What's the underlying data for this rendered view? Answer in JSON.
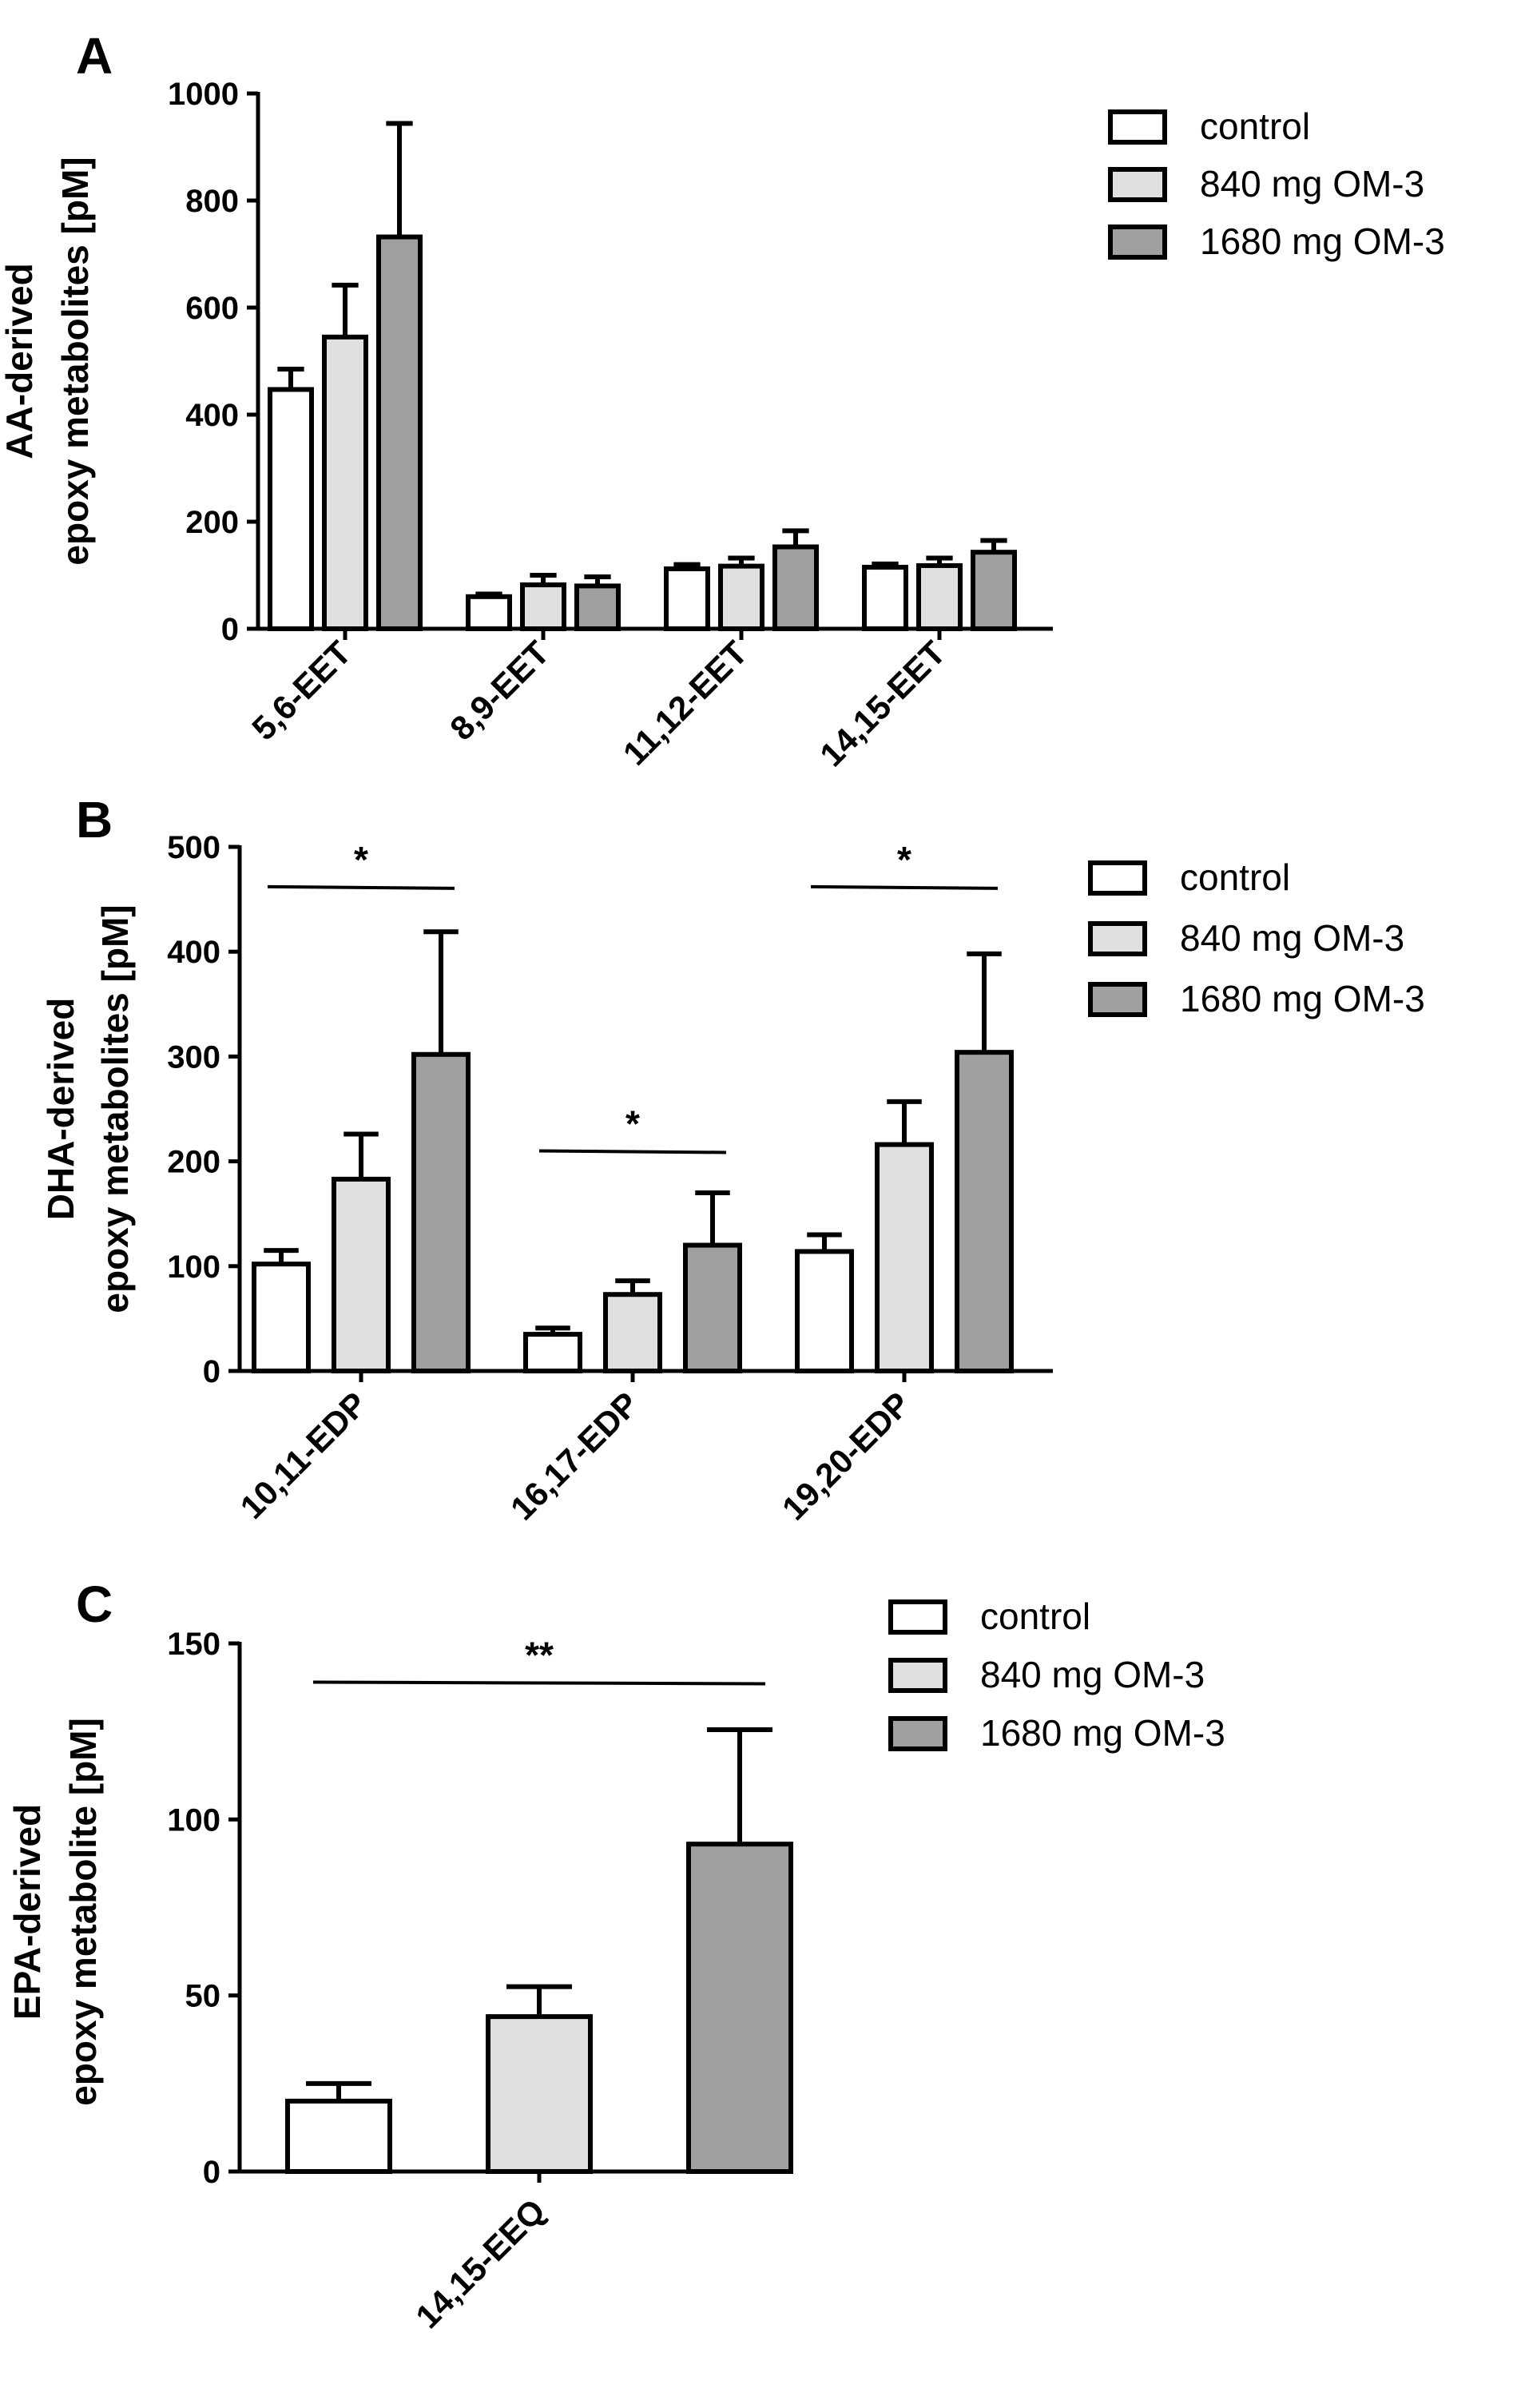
{
  "colors": {
    "control": "#ffffff",
    "840": "#e0e0e0",
    "1680": "#a0a0a0",
    "stroke": "#000000"
  },
  "legend": [
    "control",
    "840 mg OM-3",
    "1680 mg OM-3"
  ],
  "chart_data": [
    {
      "panel": "A",
      "type": "bar",
      "ylabel": [
        "AA-derived",
        "epoxy metabolites [pM]"
      ],
      "ylim": [
        0,
        1000
      ],
      "yticks": [
        0,
        200,
        400,
        600,
        800,
        1000
      ],
      "categories": [
        "5,6-EET",
        "8,9-EET",
        "11,12-EET",
        "14,15-EET"
      ],
      "series": [
        {
          "name": "control",
          "values": [
            447,
            60,
            112,
            115
          ],
          "errors": [
            38,
            5,
            8,
            6
          ]
        },
        {
          "name": "840 mg OM-3",
          "values": [
            545,
            82,
            117,
            118
          ],
          "errors": [
            97,
            18,
            15,
            14
          ]
        },
        {
          "name": "1680 mg OM-3",
          "values": [
            732,
            80,
            153,
            143
          ],
          "errors": [
            212,
            17,
            30,
            22
          ]
        }
      ],
      "significance": []
    },
    {
      "panel": "B",
      "type": "bar",
      "ylabel": [
        "DHA-derived",
        "epoxy metabolites [pM]"
      ],
      "ylim": [
        0,
        500
      ],
      "yticks": [
        0,
        100,
        200,
        300,
        400,
        500
      ],
      "categories": [
        "10,11-EDP",
        "16,17-EDP",
        "19,20-EDP"
      ],
      "series": [
        {
          "name": "control",
          "values": [
            102,
            35,
            114
          ],
          "errors": [
            13,
            6,
            16
          ]
        },
        {
          "name": "840 mg OM-3",
          "values": [
            183,
            73,
            216
          ],
          "errors": [
            43,
            13,
            41
          ]
        },
        {
          "name": "1680 mg OM-3",
          "values": [
            302,
            120,
            304
          ],
          "errors": [
            117,
            50,
            94
          ]
        }
      ],
      "significance": [
        {
          "category": 0,
          "from": 0,
          "to": 2,
          "y": 462,
          "label": "*"
        },
        {
          "category": 1,
          "from": 0,
          "to": 2,
          "y": 210,
          "label": "*"
        },
        {
          "category": 2,
          "from": 0,
          "to": 2,
          "y": 462,
          "label": "*"
        }
      ]
    },
    {
      "panel": "C",
      "type": "bar",
      "ylabel": [
        "EPA-derived",
        "epoxy metabolite [pM]"
      ],
      "ylim": [
        0,
        150
      ],
      "yticks": [
        0,
        50,
        100,
        150
      ],
      "categories": [
        "14,15-EEQ"
      ],
      "series": [
        {
          "name": "control",
          "values": [
            20
          ],
          "errors": [
            5
          ]
        },
        {
          "name": "840 mg OM-3",
          "values": [
            44
          ],
          "errors": [
            8.5
          ]
        },
        {
          "name": "1680 mg OM-3",
          "values": [
            93
          ],
          "errors": [
            32.5
          ]
        }
      ],
      "significance": [
        {
          "category": 0,
          "from": 0,
          "to": 2,
          "y": 139,
          "label": "**"
        }
      ]
    }
  ]
}
